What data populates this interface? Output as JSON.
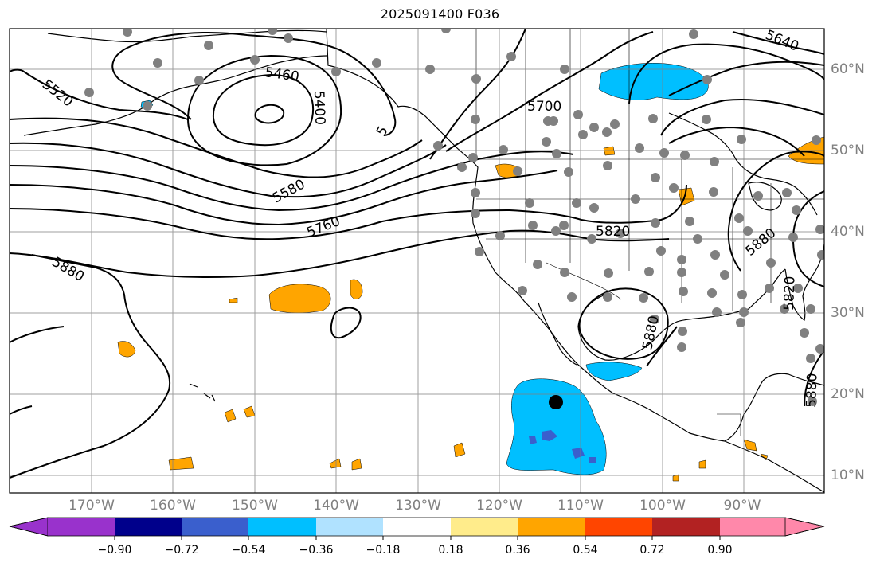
{
  "title": "2025091400 F036",
  "map": {
    "lon_labels": [
      "170°W",
      "160°W",
      "150°W",
      "140°W",
      "130°W",
      "120°W",
      "110°W",
      "100°W",
      "90°W"
    ],
    "lat_labels": [
      "60°N",
      "50°N",
      "40°N",
      "30°N",
      "20°N",
      "10°N"
    ],
    "contour_labels": [
      "5520",
      "5460",
      "5400",
      "5",
      "5580",
      "5760",
      "5700",
      "5820",
      "5880",
      "5880",
      "5880",
      "5640",
      "5820",
      "5880"
    ],
    "colors": {
      "background": "#ffffff",
      "contour": "#000000",
      "grid": "#808080",
      "station": "#808080",
      "coast": "#000000"
    }
  },
  "colorbar": {
    "tick_labels": [
      "−0.90",
      "−0.72",
      "−0.54",
      "−0.36",
      "−0.18",
      "0.18",
      "0.36",
      "0.54",
      "0.72",
      "0.90"
    ],
    "colors": [
      "#9932cc",
      "#00008b",
      "#3a5fcd",
      "#00bfff",
      "#b0e2ff",
      "#ffffff",
      "#ffec8b",
      "#ffa500",
      "#ff4500",
      "#b22222",
      "#ff88aa"
    ]
  }
}
